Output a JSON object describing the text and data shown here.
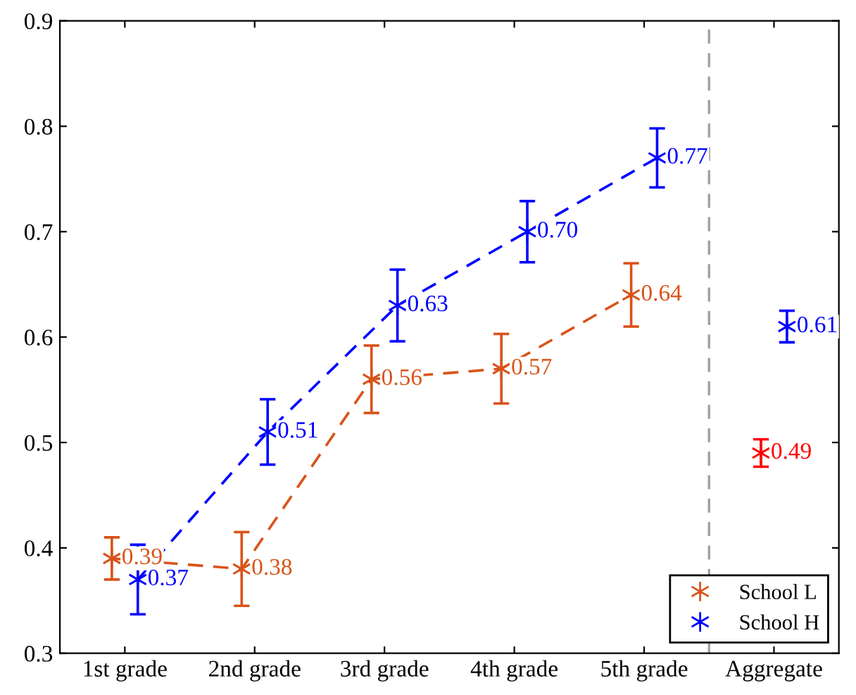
{
  "chart_data": {
    "type": "line",
    "categories": [
      "1st grade",
      "2nd grade",
      "3rd grade",
      "4th grade",
      "5th grade",
      "Aggregate"
    ],
    "series": [
      {
        "name": "School L",
        "color": "#d95319",
        "values": [
          0.39,
          0.38,
          0.56,
          0.57,
          0.64,
          null
        ],
        "errors": [
          0.02,
          0.035,
          0.032,
          0.033,
          0.03,
          null
        ],
        "value_labels": [
          "0.39",
          "0.38",
          "0.56",
          "0.57",
          "0.64",
          null
        ]
      },
      {
        "name": "School H",
        "color": "#0000ff",
        "values": [
          0.37,
          0.51,
          0.63,
          0.7,
          0.77,
          null
        ],
        "errors": [
          0.033,
          0.031,
          0.034,
          0.029,
          0.028,
          null
        ],
        "value_labels": [
          "0.37",
          "0.51",
          "0.63",
          "0.70",
          "0.77",
          null
        ]
      },
      {
        "type": "scatter",
        "color": "#ff0000",
        "values": [
          null,
          null,
          null,
          null,
          null,
          0.49
        ],
        "errors": [
          null,
          null,
          null,
          null,
          null,
          0.013
        ],
        "value_labels": [
          null,
          null,
          null,
          null,
          null,
          "0.49"
        ]
      },
      {
        "type": "scatter",
        "color": "#0000ff",
        "values": [
          null,
          null,
          null,
          null,
          null,
          0.61
        ],
        "errors": [
          null,
          null,
          null,
          null,
          null,
          0.015
        ],
        "value_labels": [
          null,
          null,
          null,
          null,
          null,
          "0.61"
        ]
      }
    ],
    "ylim": [
      0.3,
      0.9
    ],
    "yticks": [
      0.3,
      0.4,
      0.5,
      0.6,
      0.7,
      0.8,
      0.9
    ],
    "marker": "cross",
    "line_style": "dashed",
    "grid": false,
    "legend": "bottom right"
  }
}
